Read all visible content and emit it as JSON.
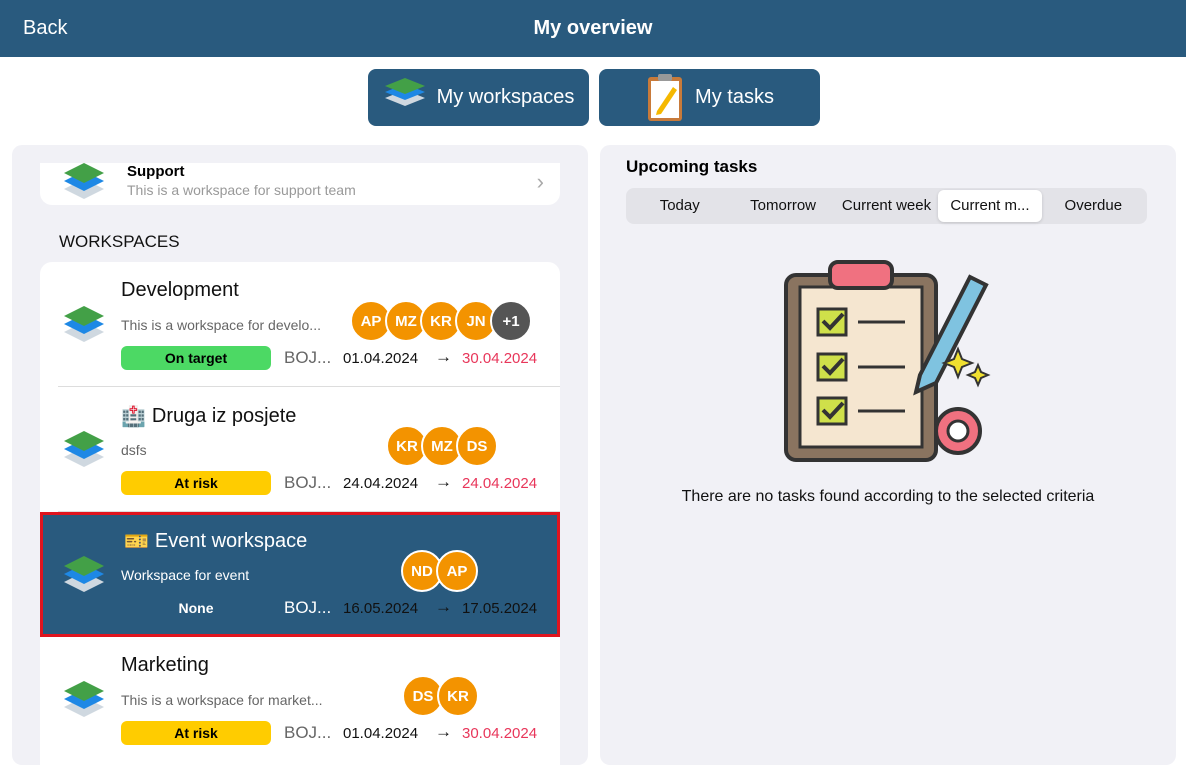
{
  "header": {
    "back_label": "Back",
    "title": "My overview"
  },
  "top_buttons": [
    {
      "label": "My workspaces",
      "icon": "layers-icon"
    },
    {
      "label": "My tasks",
      "icon": "clipboard-pencil-icon"
    }
  ],
  "support": {
    "name": "Support",
    "description": "This is a workspace for support team"
  },
  "section_label": "WORKSPACES",
  "workspaces": [
    {
      "name": "Development",
      "emoji": "",
      "description": "This is a workspace for develo...",
      "status": "On target",
      "status_color": "#4cd964",
      "owner": "BOJ...",
      "start": "01.04.2024",
      "end": "30.04.2024",
      "members": [
        "AP",
        "MZ",
        "KR",
        "JN"
      ],
      "more": "+1",
      "selected": false
    },
    {
      "name": "Druga iz posjete",
      "emoji": "🏥",
      "description": "dsfs",
      "status": "At risk",
      "status_color": "#ffcc00",
      "owner": "BOJ...",
      "start": "24.04.2024",
      "end": "24.04.2024",
      "members": [
        "KR",
        "MZ",
        "DS"
      ],
      "selected": false
    },
    {
      "name": "Event workspace",
      "emoji": "🎫",
      "description": "Workspace for event",
      "status": "None",
      "status_color": "",
      "owner": "BOJ...",
      "start": "16.05.2024",
      "end": "17.05.2024",
      "members": [
        "ND",
        "AP"
      ],
      "selected": true
    },
    {
      "name": "Marketing",
      "emoji": "",
      "description": "This is a workspace for market...",
      "status": "At risk",
      "status_color": "#ffcc00",
      "owner": "BOJ...",
      "start": "01.04.2024",
      "end": "30.04.2024",
      "members": [
        "DS",
        "KR"
      ],
      "selected": false
    }
  ],
  "arrow": "→",
  "tasks": {
    "title": "Upcoming tasks",
    "tabs": [
      "Today",
      "Tomorrow",
      "Current week",
      "Current m...",
      "Overdue"
    ],
    "active_tab": "Current m...",
    "empty_text": "There are no tasks found according to the selected criteria"
  },
  "colors": {
    "header": "#295a7e",
    "avatar": "#f39300",
    "overdue_date": "#e8365a",
    "selected_border": "#e0141e"
  }
}
